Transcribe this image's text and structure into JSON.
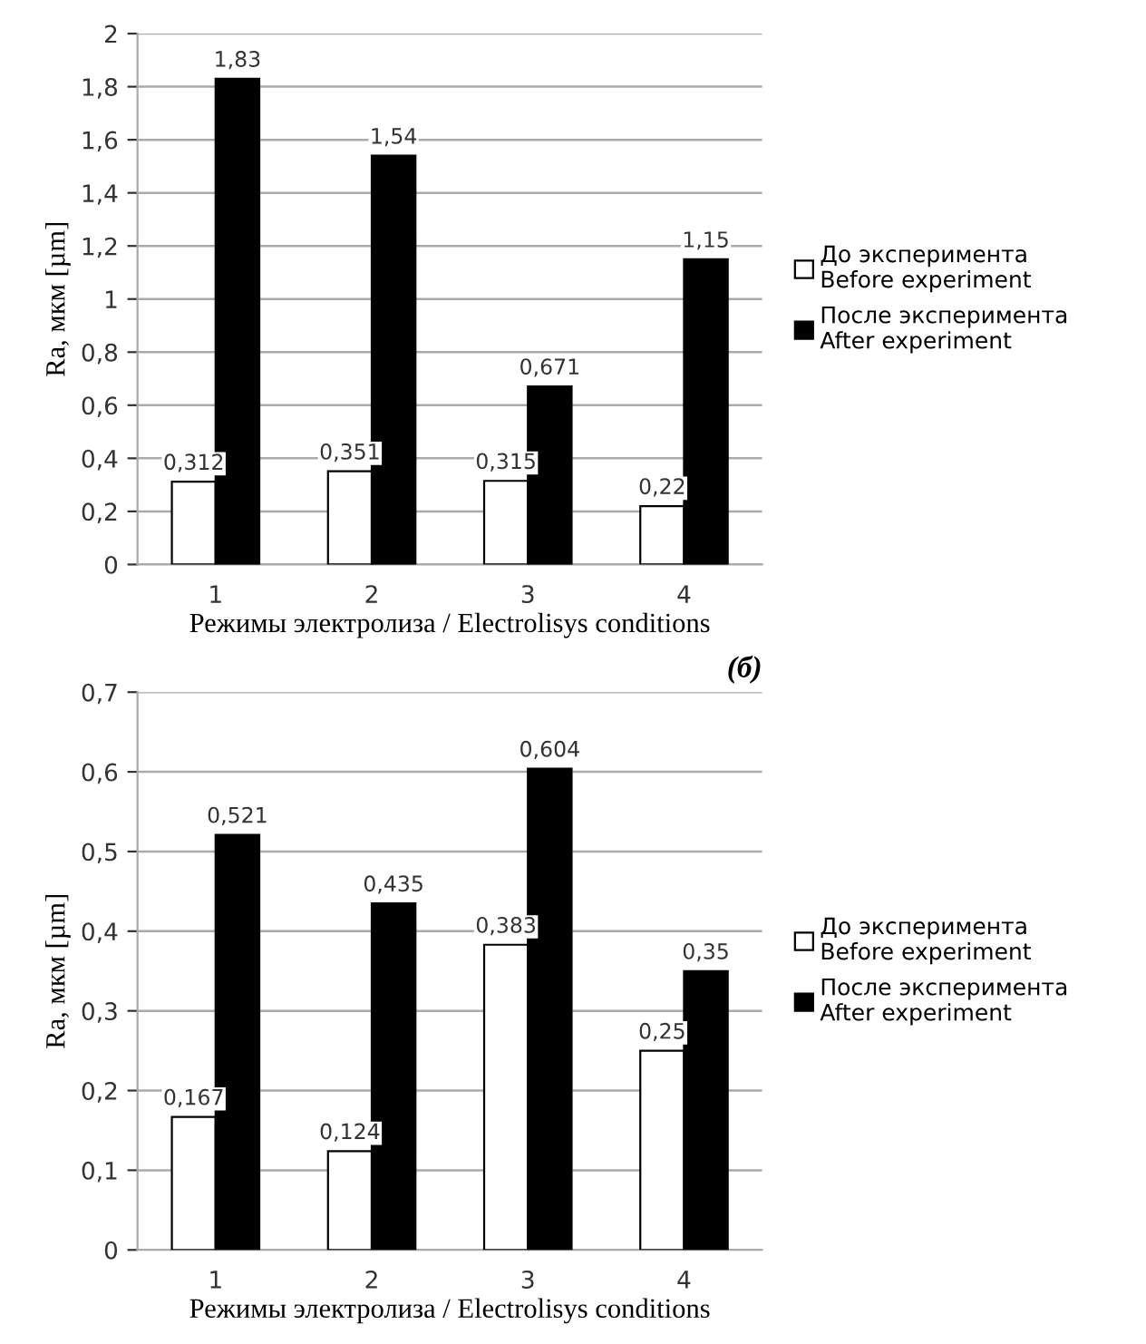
{
  "chart_data": [
    {
      "type": "bar",
      "categories": [
        "1",
        "2",
        "3",
        "4"
      ],
      "xlabel": "Режимы электролиза / Electrolisys conditions",
      "ylabel": "Ra, мкм [µm]",
      "series": [
        {
          "name": "До эксперимента\nBefore experiment",
          "color": "#ffffff",
          "values": [
            0.312,
            0.351,
            0.315,
            0.22
          ],
          "value_labels": [
            "0,312",
            "0,351",
            "0,315",
            "0,22"
          ]
        },
        {
          "name": "После эксперимента\nAfter experiment",
          "color": "#000000",
          "values": [
            1.83,
            1.54,
            0.671,
            1.15
          ],
          "value_labels": [
            "1,83",
            "1,54",
            "0,671",
            "1,15"
          ]
        }
      ],
      "ylim": [
        0,
        2
      ],
      "yticks": [
        0,
        {
          "value": 0.2,
          "label": "0,2"
        },
        {
          "value": 0.4,
          "label": "0,4"
        },
        {
          "value": 0.6,
          "label": "0,6"
        },
        {
          "value": 0.8,
          "label": "0,8"
        },
        1,
        {
          "value": 1.2,
          "label": "1,2"
        },
        {
          "value": 1.4,
          "label": "1,4"
        },
        {
          "value": 1.6,
          "label": "1,6"
        },
        {
          "value": 1.8,
          "label": "1,8"
        },
        2
      ],
      "grid": "y",
      "legend": "right"
    },
    {
      "type": "bar",
      "title": "(б)",
      "categories": [
        "1",
        "2",
        "3",
        "4"
      ],
      "xlabel": "Режимы электролиза / Electrolisys conditions",
      "ylabel": "Ra, мкм [µm]",
      "series": [
        {
          "name": "До эксперимента\nBefore experiment",
          "color": "#ffffff",
          "values": [
            0.167,
            0.124,
            0.383,
            0.25
          ],
          "value_labels": [
            "0,167",
            "0,124",
            "0,383",
            "0,25"
          ]
        },
        {
          "name": "После эксперимента\nAfter experiment",
          "color": "#000000",
          "values": [
            0.521,
            0.435,
            0.604,
            0.35
          ],
          "value_labels": [
            "0,521",
            "0,435",
            "0,604",
            "0,35"
          ]
        }
      ],
      "ylim": [
        0,
        0.7
      ],
      "yticks": [
        0,
        {
          "value": 0.1,
          "label": "0,1"
        },
        {
          "value": 0.2,
          "label": "0,2"
        },
        {
          "value": 0.3,
          "label": "0,3"
        },
        {
          "value": 0.4,
          "label": "0,4"
        },
        {
          "value": 0.5,
          "label": "0,5"
        },
        {
          "value": 0.6,
          "label": "0,6"
        },
        {
          "value": 0.7,
          "label": "0,7"
        }
      ],
      "grid": "y",
      "legend": "right"
    }
  ]
}
